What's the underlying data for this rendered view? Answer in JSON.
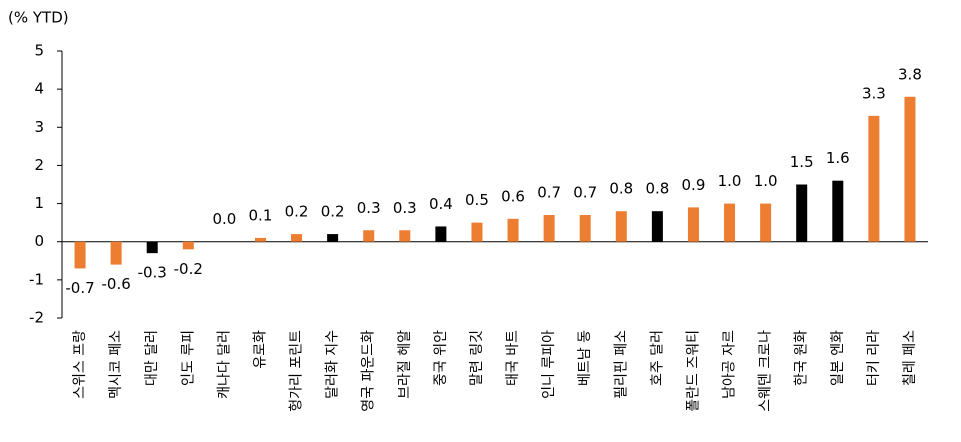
{
  "chart_data": {
    "type": "bar",
    "axis_title": "(% YTD)",
    "categories": [
      "스위스 프랑",
      "멕시코 페소",
      "대만 달러",
      "인도 루피",
      "캐나다 달러",
      "유로화",
      "헝가리 포린트",
      "달러화 지수",
      "영국 파운드화",
      "브라질 헤알",
      "중국 위안",
      "말련 링깃",
      "태국 바트",
      "인니 루피아",
      "베트남 동",
      "필리핀 페소",
      "호주 달러",
      "폴란드 즈워티",
      "남아공 자르",
      "스웨덴 크로나",
      "한국 원화",
      "일본 엔화",
      "터키 리라",
      "칠레 페소"
    ],
    "values": [
      -0.7,
      -0.6,
      -0.3,
      -0.2,
      0.0,
      0.1,
      0.2,
      0.2,
      0.3,
      0.3,
      0.4,
      0.5,
      0.6,
      0.7,
      0.7,
      0.8,
      0.8,
      0.9,
      1.0,
      1.0,
      1.5,
      1.6,
      3.3,
      3.8
    ],
    "value_labels": [
      "-0.7",
      "-0.6",
      "-0.3",
      "-0.2",
      "0.0",
      "0.1",
      "0.2",
      "0.2",
      "0.3",
      "0.3",
      "0.4",
      "0.5",
      "0.6",
      "0.7",
      "0.7",
      "0.8",
      "0.8",
      "0.9",
      "1.0",
      "1.0",
      "1.5",
      "1.6",
      "3.3",
      "3.8"
    ],
    "colors": [
      "#ed7d31",
      "#ed7d31",
      "#000000",
      "#ed7d31",
      "#ed7d31",
      "#ed7d31",
      "#ed7d31",
      "#000000",
      "#ed7d31",
      "#ed7d31",
      "#000000",
      "#ed7d31",
      "#ed7d31",
      "#ed7d31",
      "#ed7d31",
      "#ed7d31",
      "#000000",
      "#ed7d31",
      "#ed7d31",
      "#ed7d31",
      "#000000",
      "#000000",
      "#ed7d31",
      "#ed7d31"
    ],
    "ylim": [
      -2,
      5
    ],
    "yticks": [
      -2,
      -1,
      0,
      1,
      2,
      3,
      4,
      5
    ],
    "grid": false
  }
}
